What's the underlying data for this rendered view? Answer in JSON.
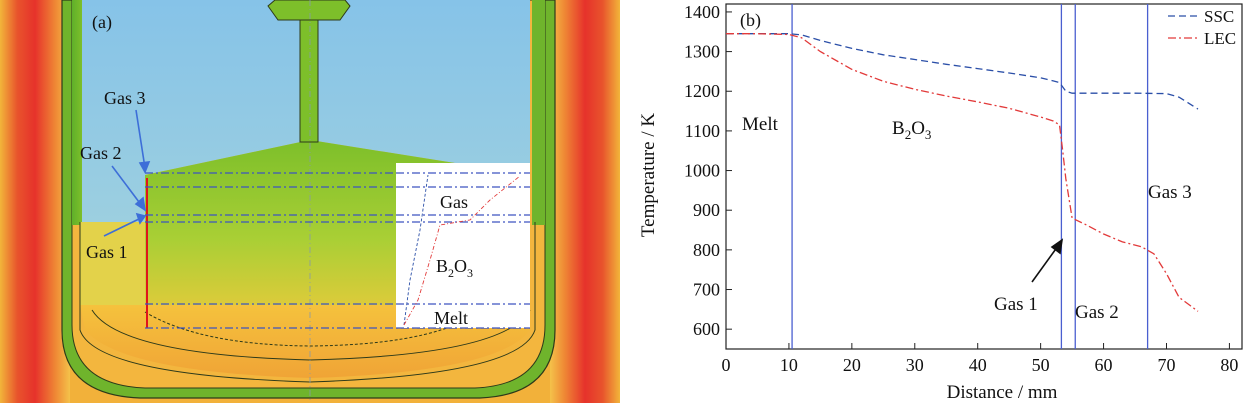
{
  "panel_a": {
    "label": "(a)",
    "callouts": [
      "Gas 3",
      "Gas 2",
      "Gas 1"
    ],
    "inset_labels": {
      "gas": "Gas",
      "b2o3_main": "B",
      "b2o3_sub1": "2",
      "b2o3_mid": "O",
      "b2o3_sub2": "3",
      "melt": "Melt"
    },
    "colors": {
      "gas_region": "#8ec8e6",
      "b2o3_region": "#7dbf2a",
      "melt_region": "#f2b53a",
      "hot_wall": "#e6322b"
    }
  },
  "chart_data": {
    "type": "line",
    "panel_label": "(b)",
    "xlabel": "Distance / mm",
    "ylabel": "Temperature / K",
    "xlim": [
      0,
      82
    ],
    "ylim": [
      550,
      1420
    ],
    "xticks": [
      0,
      10,
      20,
      30,
      40,
      50,
      60,
      70,
      80
    ],
    "yticks": [
      600,
      700,
      800,
      900,
      1000,
      1100,
      1200,
      1300,
      1400
    ],
    "grid": false,
    "legend_position": "top-right",
    "series": [
      {
        "name": "SSC",
        "color": "#2b4fa8",
        "style": "dashed",
        "x": [
          0,
          5,
          10,
          12,
          15,
          20,
          25,
          30,
          35,
          40,
          45,
          50,
          52,
          53,
          54,
          55,
          60,
          65,
          70,
          72,
          75
        ],
        "y": [
          1345,
          1345,
          1345,
          1342,
          1328,
          1308,
          1292,
          1280,
          1268,
          1257,
          1246,
          1234,
          1226,
          1222,
          1200,
          1195,
          1195,
          1195,
          1194,
          1185,
          1155
        ]
      },
      {
        "name": "LEC",
        "color": "#e23a3a",
        "style": "dashdot",
        "x": [
          0,
          5,
          10,
          12,
          15,
          20,
          25,
          30,
          35,
          40,
          45,
          50,
          52,
          53,
          53.5,
          54,
          55,
          57,
          60,
          63,
          66,
          68,
          70,
          72,
          75
        ],
        "y": [
          1345,
          1345,
          1343,
          1335,
          1300,
          1255,
          1225,
          1205,
          1188,
          1173,
          1157,
          1135,
          1125,
          1115,
          1050,
          980,
          880,
          865,
          840,
          820,
          808,
          790,
          740,
          680,
          645
        ]
      }
    ],
    "vlines": [
      10.5,
      53.3,
      55.5,
      67.0
    ],
    "annotations": {
      "melt": "Melt",
      "b2o3": "B",
      "b2o3_sub1": "2",
      "b2o3_mid": "O",
      "b2o3_sub2": "3",
      "gas1": "Gas 1",
      "gas2": "Gas 2",
      "gas3": "Gas 3"
    }
  }
}
